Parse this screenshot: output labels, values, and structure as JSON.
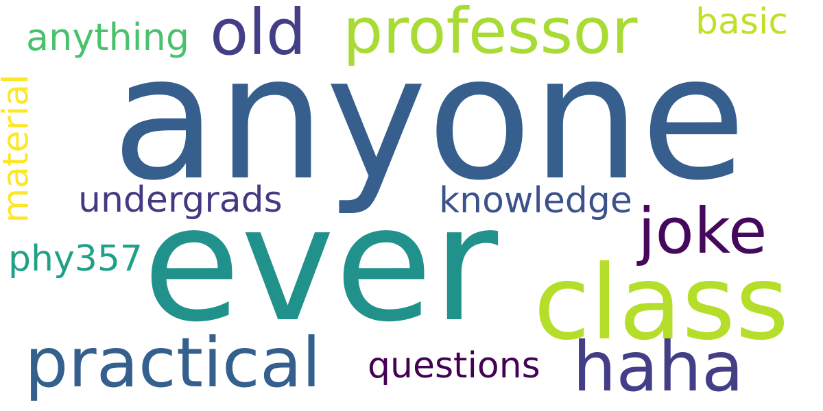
{
  "cloud": {
    "words": [
      {
        "text": "anyone",
        "color": "#365f8d"
      },
      {
        "text": "ever",
        "color": "#21918c"
      },
      {
        "text": "class",
        "color": "#b5de2b"
      },
      {
        "text": "professor",
        "color": "#a8db34"
      },
      {
        "text": "practical",
        "color": "#355f8d"
      },
      {
        "text": "haha",
        "color": "#433e85"
      },
      {
        "text": "joke",
        "color": "#46085c"
      },
      {
        "text": "old",
        "color": "#433e85"
      },
      {
        "text": "anything",
        "color": "#4ac16d"
      },
      {
        "text": "basic",
        "color": "#c2df23"
      },
      {
        "text": "undergrads",
        "color": "#443983"
      },
      {
        "text": "knowledge",
        "color": "#3b528b"
      },
      {
        "text": "questions",
        "color": "#440154"
      },
      {
        "text": "phy357",
        "color": "#1fa187"
      },
      {
        "text": "material",
        "color": "#fde725"
      }
    ]
  }
}
